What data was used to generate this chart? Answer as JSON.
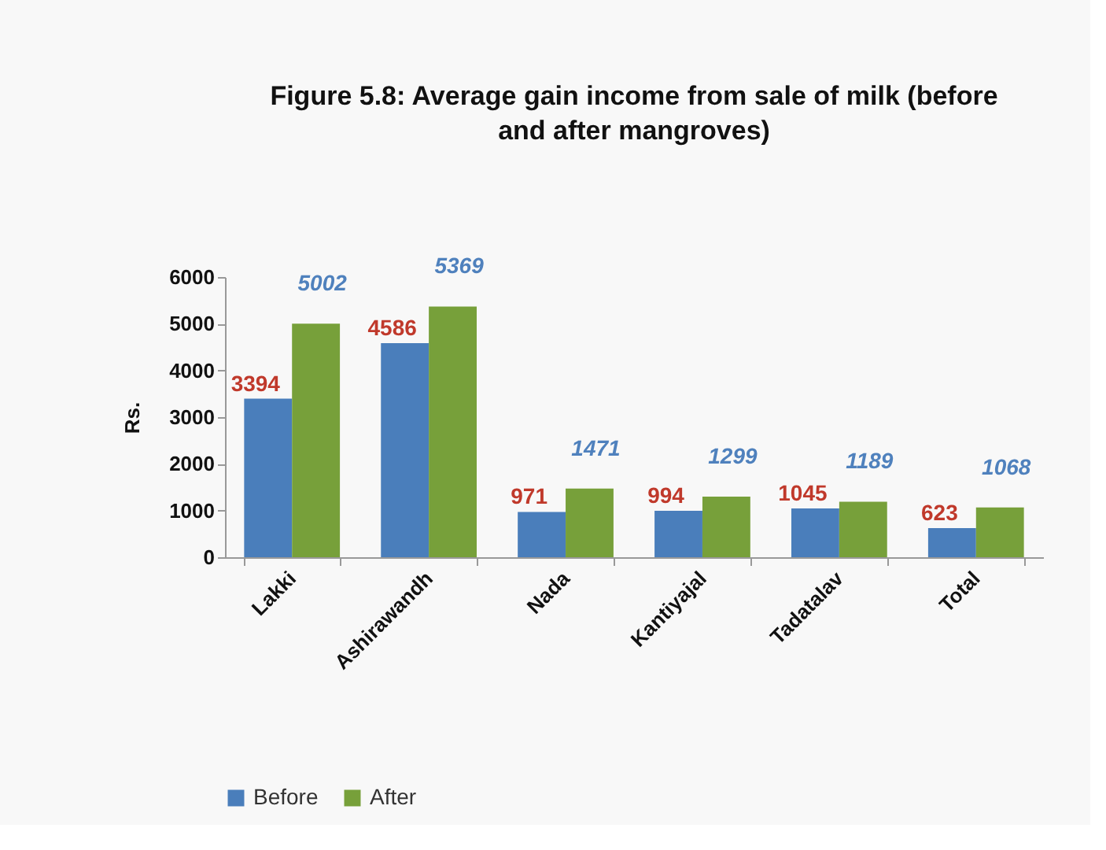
{
  "chart_data": {
    "type": "bar",
    "title": "Figure 5.8: Average gain income from sale of milk (before and after mangroves)",
    "ylabel": "Rs.",
    "categories": [
      "Lakki",
      "Ashirawandh",
      "Nada",
      "Kantiyajal",
      "Tadatalav",
      "Total"
    ],
    "series": [
      {
        "name": "Before",
        "color": "#4a7ebb",
        "values": [
          3394,
          4586,
          971,
          994,
          1045,
          623
        ]
      },
      {
        "name": "After",
        "color": "#77a03a",
        "values": [
          5002,
          5369,
          1471,
          1299,
          1189,
          1068
        ]
      }
    ],
    "ylim": [
      0,
      6000
    ],
    "yticks": [
      0,
      1000,
      2000,
      3000,
      4000,
      5000,
      6000
    ],
    "data_labels": true,
    "legend": "bottom"
  }
}
